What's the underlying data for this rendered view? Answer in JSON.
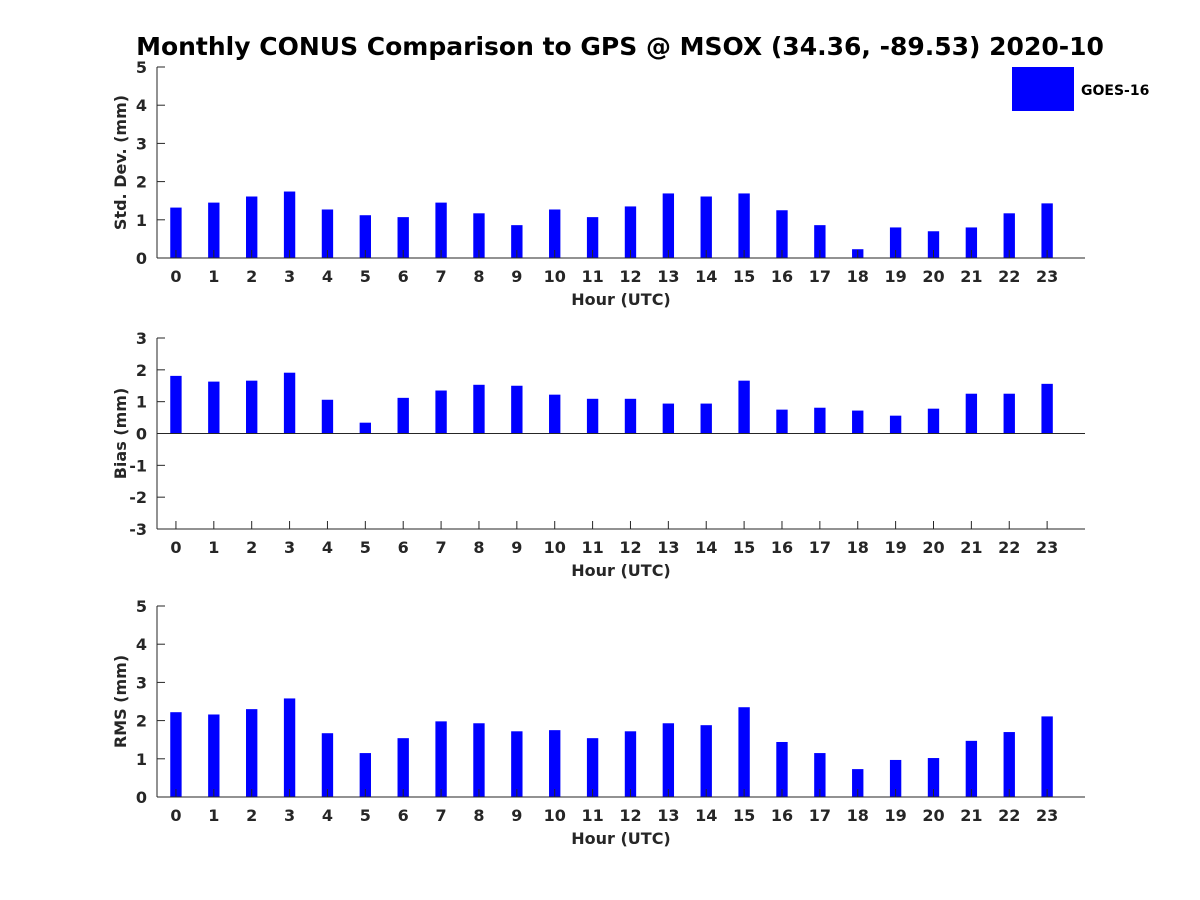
{
  "title": "Monthly CONUS Comparison to GPS @ MSOX (34.36, -89.53) 2020-10",
  "legend": {
    "label": "GOES-16",
    "color": "#0000ff"
  },
  "chart_data": [
    {
      "type": "bar",
      "xlabel": "Hour (UTC)",
      "ylabel": "Std. Dev. (mm)",
      "ylim": [
        0,
        5
      ],
      "yticks": [
        0,
        1,
        2,
        3,
        4,
        5
      ],
      "categories": [
        "0",
        "1",
        "2",
        "3",
        "4",
        "5",
        "6",
        "7",
        "8",
        "9",
        "10",
        "11",
        "12",
        "13",
        "14",
        "15",
        "16",
        "17",
        "18",
        "19",
        "20",
        "21",
        "22",
        "23"
      ],
      "series": [
        {
          "name": "GOES-16",
          "color": "#0000ff",
          "values": [
            1.32,
            1.45,
            1.61,
            1.74,
            1.27,
            1.12,
            1.07,
            1.45,
            1.17,
            0.86,
            1.27,
            1.07,
            1.35,
            1.69,
            1.61,
            1.69,
            1.25,
            0.86,
            0.23,
            0.8,
            0.7,
            0.8,
            1.17,
            1.43
          ]
        }
      ]
    },
    {
      "type": "bar",
      "xlabel": "Hour (UTC)",
      "ylabel": "Bias (mm)",
      "ylim": [
        -3,
        3
      ],
      "yticks": [
        -3,
        -2,
        -1,
        0,
        1,
        2,
        3
      ],
      "categories": [
        "0",
        "1",
        "2",
        "3",
        "4",
        "5",
        "6",
        "7",
        "8",
        "9",
        "10",
        "11",
        "12",
        "13",
        "14",
        "15",
        "16",
        "17",
        "18",
        "19",
        "20",
        "21",
        "22",
        "23"
      ],
      "series": [
        {
          "name": "GOES-16",
          "color": "#0000ff",
          "values": [
            1.81,
            1.63,
            1.66,
            1.91,
            1.06,
            0.34,
            1.12,
            1.35,
            1.53,
            1.5,
            1.22,
            1.09,
            1.09,
            0.94,
            0.94,
            1.66,
            0.75,
            0.81,
            0.72,
            0.56,
            0.78,
            1.25,
            1.25,
            1.56
          ]
        }
      ]
    },
    {
      "type": "bar",
      "xlabel": "Hour (UTC)",
      "ylabel": "RMS (mm)",
      "ylim": [
        0,
        5
      ],
      "yticks": [
        0,
        1,
        2,
        3,
        4,
        5
      ],
      "categories": [
        "0",
        "1",
        "2",
        "3",
        "4",
        "5",
        "6",
        "7",
        "8",
        "9",
        "10",
        "11",
        "12",
        "13",
        "14",
        "15",
        "16",
        "17",
        "18",
        "19",
        "20",
        "21",
        "22",
        "23"
      ],
      "series": [
        {
          "name": "GOES-16",
          "color": "#0000ff",
          "values": [
            2.22,
            2.16,
            2.3,
            2.58,
            1.67,
            1.15,
            1.54,
            1.98,
            1.93,
            1.72,
            1.75,
            1.54,
            1.72,
            1.93,
            1.88,
            2.35,
            1.44,
            1.15,
            0.73,
            0.97,
            1.02,
            1.47,
            1.7,
            2.11
          ]
        }
      ]
    }
  ]
}
